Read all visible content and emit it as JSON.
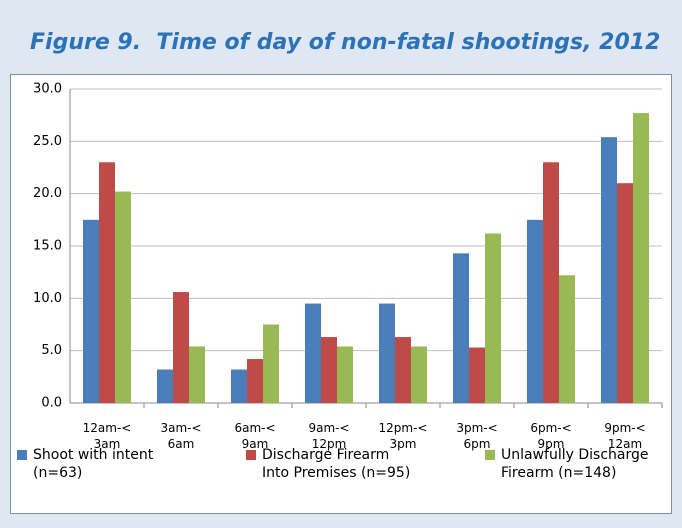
{
  "chart_data": {
    "type": "bar",
    "title": "Figure 9.  Time of day of non-fatal shootings, 2012",
    "categories": [
      "12am-< 3am",
      "3am-< 6am",
      "6am-< 9am",
      "9am-< 12pm",
      "12pm-< 3pm",
      "3pm-< 6pm",
      "6pm-< 9pm",
      "9pm-< 12am"
    ],
    "series": [
      {
        "name": "Shoot with intent (n=63)",
        "color": "#4a7ebb",
        "values": [
          17.5,
          3.2,
          3.2,
          9.5,
          9.5,
          14.3,
          17.5,
          25.4
        ]
      },
      {
        "name": "Discharge Firearm Into Premises (n=95)",
        "color": "#be4b48",
        "values": [
          23.0,
          10.6,
          4.2,
          6.3,
          6.3,
          5.3,
          23.0,
          21.0
        ]
      },
      {
        "name": "Unlawfully Discharge Firearm (n=148)",
        "color": "#98b954",
        "values": [
          20.2,
          5.4,
          7.5,
          5.4,
          5.4,
          16.2,
          12.2,
          27.7
        ]
      }
    ],
    "ylim": [
      0,
      30
    ],
    "yticks": [
      {
        "value": 0,
        "label": "0.0"
      },
      {
        "value": 5,
        "label": "5.0"
      },
      {
        "value": 10,
        "label": "10.0"
      },
      {
        "value": 15,
        "label": "15.0"
      },
      {
        "value": 20,
        "label": "20.0"
      },
      {
        "value": 25,
        "label": "25.0"
      },
      {
        "value": 30,
        "label": "30.0"
      }
    ],
    "grid": true,
    "legend": "bottom"
  }
}
